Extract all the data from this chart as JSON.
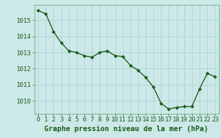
{
  "x": [
    0,
    1,
    2,
    3,
    4,
    5,
    6,
    7,
    8,
    9,
    10,
    11,
    12,
    13,
    14,
    15,
    16,
    17,
    18,
    19,
    20,
    21,
    22,
    23
  ],
  "y": [
    1015.6,
    1015.4,
    1014.3,
    1013.6,
    1013.1,
    1013.0,
    1012.8,
    1012.7,
    1013.0,
    1013.1,
    1012.8,
    1012.75,
    1012.2,
    1011.9,
    1011.45,
    1010.85,
    1009.85,
    1009.5,
    1009.6,
    1009.65,
    1009.65,
    1010.75,
    1011.7,
    1011.5
  ],
  "line_color": "#1a5c1a",
  "marker": "D",
  "markersize": 2.5,
  "linewidth": 1.0,
  "bg_color": "#cce8e8",
  "grid_color": "#aacfcf",
  "xlabel": "Graphe pression niveau de la mer (hPa)",
  "xlabel_fontsize": 7.5,
  "tick_color": "#1a5c1a",
  "tick_fontsize": 6.5,
  "ylim": [
    1009.2,
    1015.95
  ],
  "xlim": [
    -0.5,
    23.5
  ]
}
